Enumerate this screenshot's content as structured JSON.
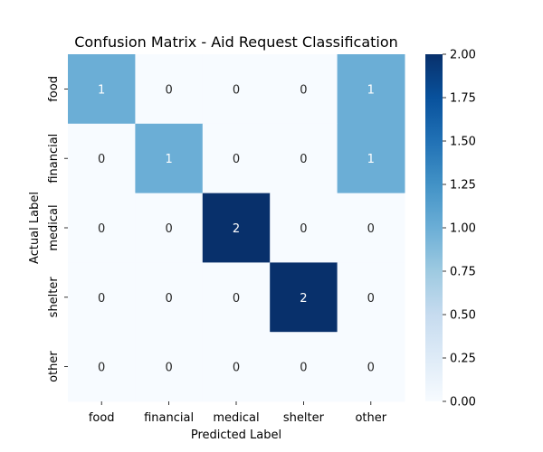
{
  "chart_data": {
    "type": "heatmap",
    "title": "Confusion Matrix - Aid Request Classification",
    "xlabel": "Predicted Label",
    "ylabel": "Actual Label",
    "x_categories": [
      "food",
      "financial",
      "medical",
      "shelter",
      "other"
    ],
    "y_categories": [
      "food",
      "financial",
      "medical",
      "shelter",
      "other"
    ],
    "values": [
      [
        1,
        0,
        0,
        0,
        1
      ],
      [
        0,
        1,
        0,
        0,
        1
      ],
      [
        0,
        0,
        2,
        0,
        0
      ],
      [
        0,
        0,
        0,
        2,
        0
      ],
      [
        0,
        0,
        0,
        0,
        0
      ]
    ],
    "colorbar": {
      "range": [
        0,
        2
      ],
      "ticks": [
        "0.00",
        "0.25",
        "0.50",
        "0.75",
        "1.00",
        "1.25",
        "1.50",
        "1.75",
        "2.00"
      ]
    },
    "colormap": "Blues",
    "colors": {
      "low": "#f7fbff",
      "mid": "#6baed6",
      "high": "#08306b",
      "text_dark": "#262626",
      "text_light": "#ffffff"
    }
  }
}
